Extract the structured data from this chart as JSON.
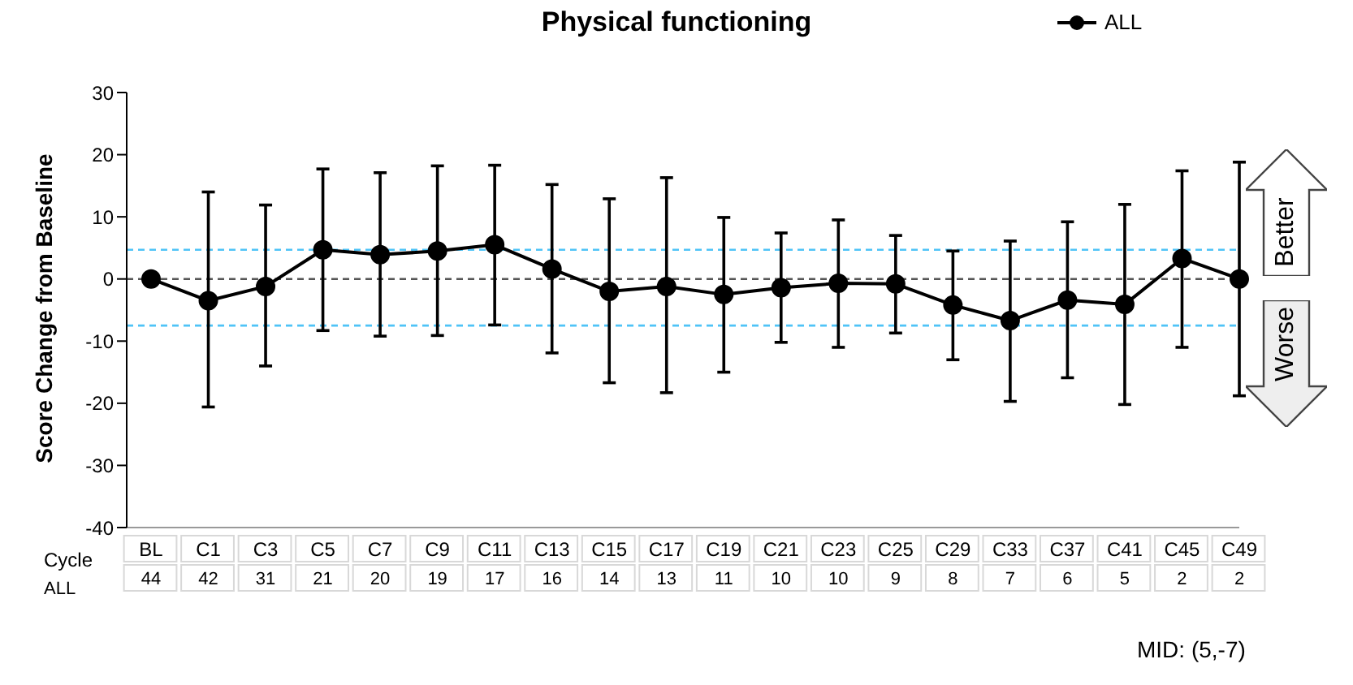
{
  "chart_data": {
    "type": "line",
    "title": "Physical functioning",
    "ylabel": "Score Change from Baseline",
    "categories": [
      "BL",
      "C1",
      "C3",
      "C5",
      "C7",
      "C9",
      "C11",
      "C13",
      "C15",
      "C17",
      "C19",
      "C21",
      "C23",
      "C25",
      "C29",
      "C33",
      "C37",
      "C41",
      "C45",
      "C49"
    ],
    "series": [
      {
        "name": "ALL",
        "color": "#000000",
        "values": [
          0,
          -3.5,
          -1.2,
          4.7,
          3.9,
          4.5,
          5.5,
          1.6,
          -2.0,
          -1.2,
          -2.5,
          -1.4,
          -0.7,
          -0.8,
          -4.2,
          -6.7,
          -3.4,
          -4.1,
          3.3,
          0
        ],
        "errors": [
          null,
          [
            -20.6,
            14.0
          ],
          [
            -14.0,
            11.9
          ],
          [
            -8.3,
            17.7
          ],
          [
            -9.2,
            17.1
          ],
          [
            -9.1,
            18.2
          ],
          [
            -7.4,
            18.3
          ],
          [
            -11.9,
            15.2
          ],
          [
            -16.7,
            12.9
          ],
          [
            -18.3,
            16.3
          ],
          [
            -15.0,
            9.9
          ],
          [
            -10.2,
            7.4
          ],
          [
            -11.0,
            9.5
          ],
          [
            -8.7,
            7.0
          ],
          [
            -13.0,
            4.5
          ],
          [
            -19.7,
            6.1
          ],
          [
            -15.9,
            9.2
          ],
          [
            -20.2,
            12.0
          ],
          [
            -11.0,
            17.4
          ],
          [
            -18.8,
            18.8
          ]
        ]
      }
    ],
    "ylim": [
      -40,
      30
    ],
    "yticks": [
      -40,
      -30,
      -20,
      -10,
      0,
      10,
      20,
      30
    ],
    "ref_lines": [
      {
        "axis": "y",
        "value": 0,
        "color": "#555555",
        "line_style": "dashed"
      },
      {
        "axis": "y",
        "value": 4.7,
        "color": "#4fc3f7",
        "line_style": "dashed"
      },
      {
        "axis": "y",
        "value": -7.5,
        "color": "#4fc3f7",
        "line_style": "dashed"
      }
    ],
    "annotations": [
      "Cycle",
      "ALL",
      "Better",
      "Worse",
      "MID: (5,-7)",
      "44",
      "42",
      "31",
      "21",
      "20",
      "19",
      "17",
      "16",
      "14",
      "13",
      "11",
      "10",
      "10",
      "9",
      "8",
      "7",
      "6",
      "5",
      "2",
      "2"
    ],
    "legend": "top right",
    "marker": "circle",
    "line_style": "solid",
    "grid": false
  }
}
